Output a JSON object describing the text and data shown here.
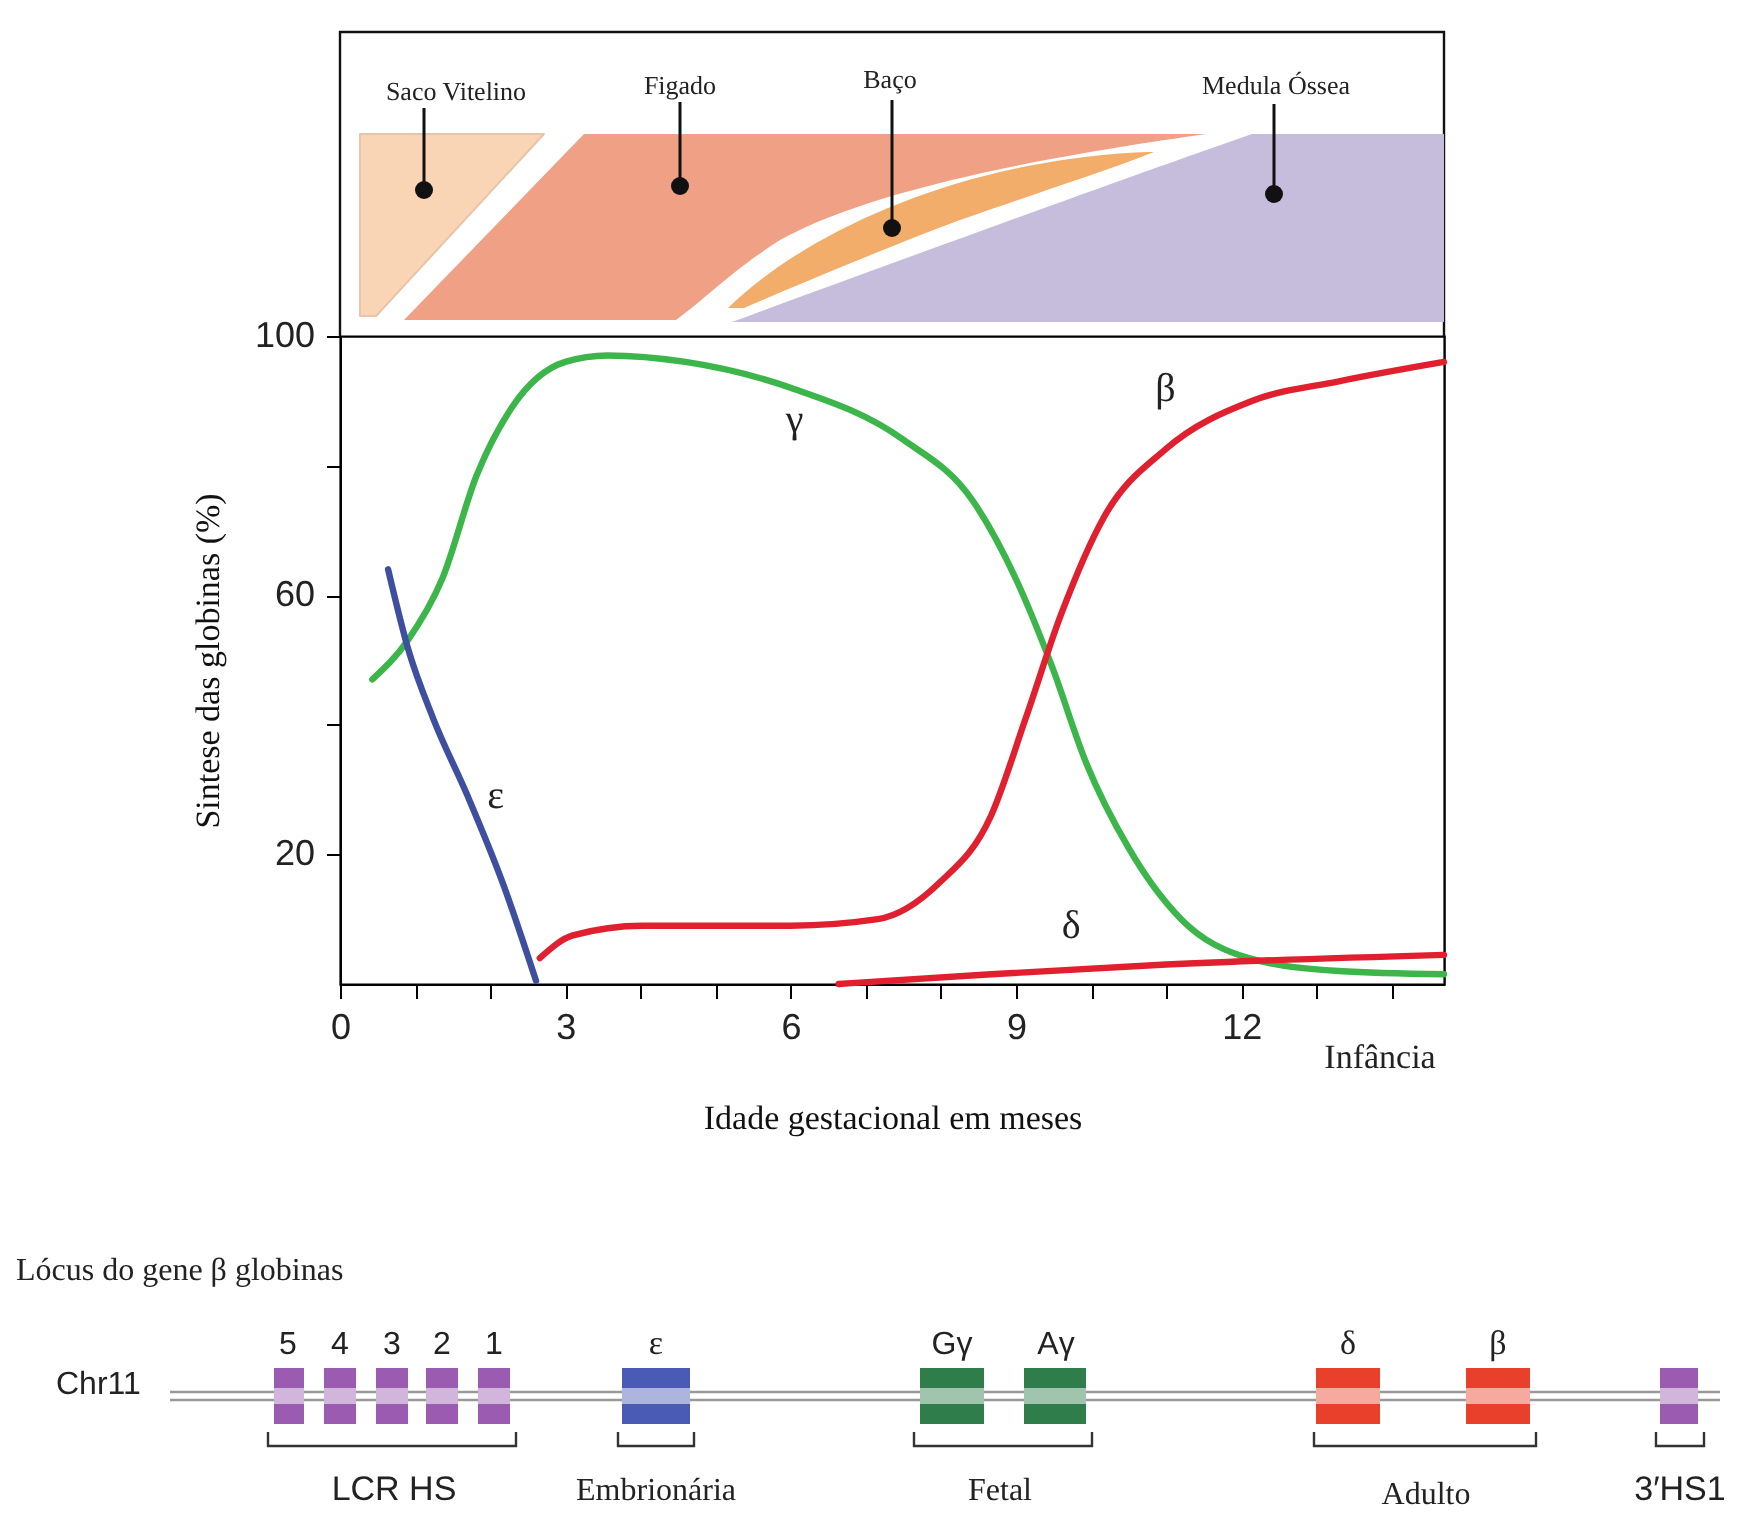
{
  "chart_data": {
    "type": "line",
    "xlabel": "Idade gestacional em meses",
    "ylabel": "Sintese das globinas (%)",
    "xlim": [
      0,
      14.7
    ],
    "ylim": [
      0,
      100
    ],
    "xticks": [
      0,
      {
        "value": 1,
        "label": null
      },
      {
        "value": 2,
        "label": null
      },
      3,
      {
        "value": 4,
        "label": null
      },
      {
        "value": 5,
        "label": null
      },
      6,
      {
        "value": 7,
        "label": null
      },
      {
        "value": 8,
        "label": null
      },
      9,
      {
        "value": 10,
        "label": null
      },
      {
        "value": 11,
        "label": null
      },
      12,
      {
        "value": 13,
        "label": null
      },
      {
        "value": 14,
        "label": null
      }
    ],
    "yticks": [
      20,
      {
        "value": 40,
        "label": null
      },
      60,
      {
        "value": 80,
        "label": null
      },
      100
    ],
    "grid": false,
    "legend": false,
    "marker": "none",
    "line_style": "solid",
    "series": [
      {
        "name": "γ",
        "color": "#3cb54a",
        "x": [
          0.43,
          0.9,
          1.36,
          1.82,
          2.29,
          3,
          3.56,
          4.6,
          6,
          7.5,
          8.43,
          9,
          9.48,
          9.94,
          10.5,
          11.2,
          12.1,
          13.3,
          14.7
        ],
        "values": [
          47,
          53,
          62.5,
          78.5,
          89,
          96,
          97,
          96,
          92,
          84,
          74.5,
          62.5,
          49,
          34,
          21,
          10,
          4,
          2,
          1.5
        ]
      },
      {
        "name": "ε",
        "color": "#3f4fa0",
        "x": [
          0.64,
          0.9,
          1.24,
          1.7,
          2.17,
          2.61
        ],
        "values": [
          64,
          52,
          41,
          29,
          15.5,
          0.5
        ]
      },
      {
        "name": "β",
        "color": "#e0202e",
        "x": [
          2.66,
          3.1,
          4.03,
          6,
          7.16,
          7.97,
          8.67,
          9.13,
          9.6,
          10.17,
          10.99,
          12.15,
          13.3,
          14.7
        ],
        "values": [
          4,
          7.5,
          9,
          9,
          10,
          15.5,
          26,
          41,
          57,
          72,
          82.5,
          90,
          93,
          96
        ]
      },
      {
        "name": "δ",
        "color": "#e0202e",
        "x": [
          6.64,
          8.67,
          11,
          14.7
        ],
        "values": [
          0,
          1.5,
          3,
          4.5
        ]
      }
    ],
    "annotations": [
      "Infância",
      "Saco Vitelino",
      "Figado",
      "Baço",
      "Medula Óssea",
      "Lócus do gene β globinas",
      "Chr11",
      "5",
      "4",
      "3",
      "2",
      "1",
      "ε",
      "Gγ",
      "Aγ",
      "δ",
      "β",
      "LCR HS",
      "Embrionária",
      "Fetal",
      "Adulto",
      "3′HS1"
    ]
  }
}
